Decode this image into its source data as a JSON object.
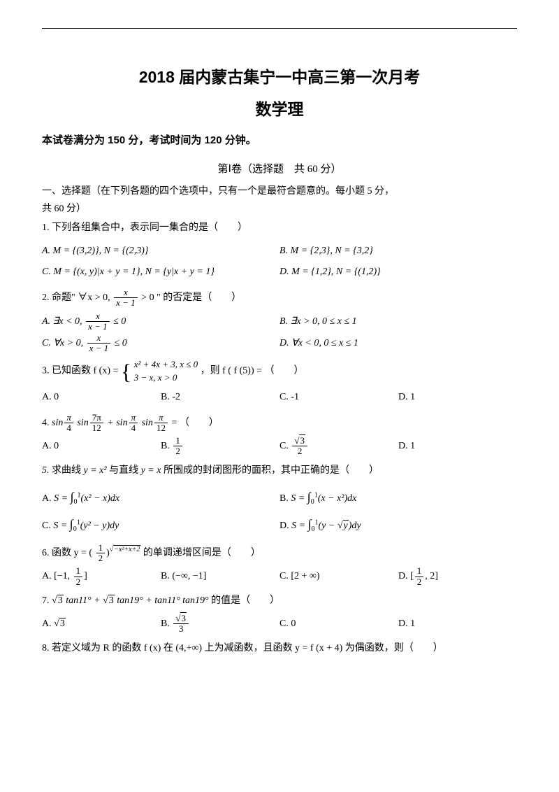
{
  "title_line1": "2018 届内蒙古集宁一中高三第一次月考",
  "title_line2": "数学理",
  "meta_info": "本试卷满分为 150 分，考试时间为 120 分钟。",
  "section_header": "第Ⅰ卷（选择题　共 60 分）",
  "instructions_l1": "一、选择题（在下列各题的四个选项中，只有一个是最符合题意的。每小题 5 分，",
  "instructions_l2": "共 60 分）",
  "q1_text": "1. 下列各组集合中，表示同一集合的是（　　）",
  "q1_a": "A. M = {(3,2)}, N = {(2,3)}",
  "q1_b": "B. M = {2,3}, N = {3,2}",
  "q1_c": "C. M = {(x, y)|x + y = 1}, N = {y|x + y = 1}",
  "q1_d": "D. M = {1,2}, N = {(1,2)}",
  "q2_text_pre": "2. 命题\" ∀x > 0, ",
  "q2_text_post": " > 0 \" 的否定是（　　）",
  "q2_frac_num": "x",
  "q2_frac_den": "x − 1",
  "q2_a_pre": "A. ∃x < 0, ",
  "q2_a_post": " ≤ 0",
  "q2_b": "B. ∃x > 0, 0 ≤ x ≤ 1",
  "q2_c_pre": "C. ∀x > 0, ",
  "q2_c_post": " ≤ 0",
  "q2_d": "D. ∀x < 0, 0 ≤ x ≤ 1",
  "q3_text_pre": "3. 已知函数 f (x) = ",
  "q3_case1": "x² + 4x + 3, x ≤ 0",
  "q3_case2": "3 − x, x > 0",
  "q3_text_post": "，则 f ( f (5)) = （　　）",
  "q3_a": "A. 0",
  "q3_b": "B. -2",
  "q3_c": "C. -1",
  "q3_d": "D. 1",
  "q4_text": "4. ",
  "q4_expr_post": " = （　　）",
  "q4_a": "A. 0",
  "q4_b_pre": "B. ",
  "q4_b_num": "1",
  "q4_b_den": "2",
  "q4_c_pre": "C. ",
  "q4_c_num": "√3",
  "q4_c_den": "2",
  "q4_d": "D. 1",
  "q5_text": "5. 求曲线 y = x² 与直线 y = x 所围成的封闭图形的面积，其中正确的是（　　）",
  "q5_a": "A. ",
  "q5_b": "B. ",
  "q5_c": "C. ",
  "q5_d": "D. ",
  "q6_text_pre": "6. 函数 y = (",
  "q6_base_num": "1",
  "q6_base_den": "2",
  "q6_text_post": " 的单调递增区间是（　　）",
  "q6_exp": "√(−x²+x+2)",
  "q6_a_pre": "A. [−1, ",
  "q6_a_num": "1",
  "q6_a_den": "2",
  "q6_a_post": "]",
  "q6_b": "B. (−∞, −1]",
  "q6_c": "C. [2 + ∞)",
  "q6_d_pre": "D. [",
  "q6_d_num": "1",
  "q6_d_den": "2",
  "q6_d_post": ", 2]",
  "q7_text": "7. √3 tan11° + √3 tan19° + tan11° tan19° 的值是（　　）",
  "q7_a": "A. √3",
  "q7_b_pre": "B. ",
  "q7_b_num": "√3",
  "q7_b_den": "3",
  "q7_c": "C. 0",
  "q7_d": "D. 1",
  "q8_text": "8. 若定义域为 R 的函数 f (x) 在 (4,+∞) 上为减函数，且函数 y = f (x + 4) 为偶函数，则（　　）",
  "colors": {
    "text": "#000000",
    "background": "#ffffff",
    "rule": "#000000"
  },
  "font_sizes": {
    "title": 23,
    "body": 14,
    "meta": 15
  }
}
